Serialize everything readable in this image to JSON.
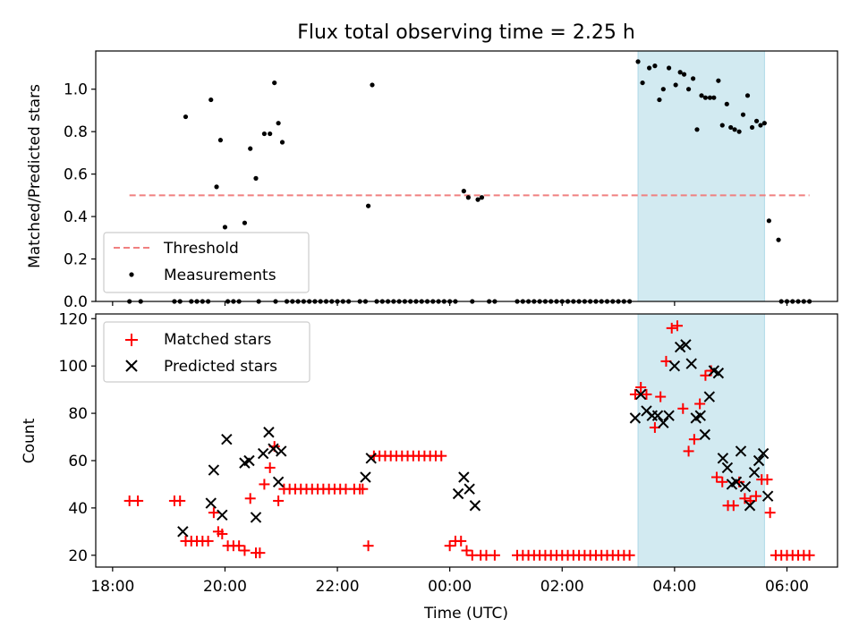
{
  "chart_data": [
    {
      "type": "scatter",
      "title": "Flux total observing time = 2.25 h",
      "xlabel": "",
      "ylabel": "Matched/Predicted stars",
      "xlim": [
        17.7,
        30.9
      ],
      "ylim": [
        0,
        1.18
      ],
      "yticks": [
        0.0,
        0.2,
        0.4,
        0.6,
        0.8,
        1.0
      ],
      "ytick_labels": [
        "0.0",
        "0.2",
        "0.4",
        "0.6",
        "0.8",
        "1.0"
      ],
      "shaded_span_x": [
        27.35,
        29.6
      ],
      "shaded_color": "#add8e6",
      "threshold": {
        "name": "Threshold",
        "y": 0.5,
        "x_range": [
          18.3,
          30.4
        ],
        "color": "#f08080"
      },
      "legend_position": "lower left",
      "series": [
        {
          "name": "Measurements",
          "color": "#000000",
          "x": [
            19.3,
            19.75,
            19.85,
            19.92,
            20.0,
            20.35,
            20.45,
            20.55,
            20.7,
            20.8,
            20.88,
            20.95,
            21.02,
            22.55,
            22.62,
            24.25,
            24.33,
            24.5,
            24.57,
            27.35,
            27.43,
            27.55,
            27.65,
            27.73,
            27.8,
            27.9,
            28.02,
            28.1,
            28.17,
            28.25,
            28.33,
            28.4,
            28.48,
            28.55,
            28.63,
            28.7,
            28.78,
            28.85,
            28.93,
            29.0,
            29.07,
            29.15,
            29.22,
            29.3,
            29.38,
            29.46,
            29.53,
            29.6,
            29.68,
            29.85,
            18.3,
            18.5,
            19.1,
            19.2,
            19.4,
            19.5,
            19.6,
            19.7,
            20.05,
            20.15,
            20.25,
            20.6,
            20.9,
            21.1,
            21.2,
            21.3,
            21.4,
            21.5,
            21.6,
            21.7,
            21.8,
            21.9,
            22.0,
            22.1,
            22.2,
            22.4,
            22.5,
            22.7,
            22.8,
            22.9,
            23.0,
            23.1,
            23.2,
            23.3,
            23.4,
            23.5,
            23.6,
            23.7,
            23.8,
            23.9,
            24.0,
            24.1,
            24.4,
            24.7,
            24.8,
            25.2,
            25.3,
            25.4,
            25.5,
            25.6,
            25.7,
            25.8,
            25.9,
            26.0,
            26.1,
            26.2,
            26.3,
            26.4,
            26.5,
            26.6,
            26.7,
            26.8,
            26.9,
            27.0,
            27.1,
            27.2,
            29.9,
            30.0,
            30.1,
            30.2,
            30.3,
            30.4
          ],
          "y": [
            0.87,
            0.95,
            0.54,
            0.76,
            0.35,
            0.37,
            0.72,
            0.58,
            0.79,
            0.79,
            1.03,
            0.84,
            0.75,
            0.45,
            1.02,
            0.52,
            0.49,
            0.48,
            0.49,
            1.13,
            1.03,
            1.1,
            1.11,
            0.95,
            1.0,
            1.1,
            1.02,
            1.08,
            1.07,
            1.0,
            1.05,
            0.81,
            0.97,
            0.96,
            0.96,
            0.96,
            1.04,
            0.83,
            0.93,
            0.82,
            0.81,
            0.8,
            0.88,
            0.97,
            0.82,
            0.85,
            0.83,
            0.84,
            0.38,
            0.29,
            0,
            0,
            0,
            0,
            0,
            0,
            0,
            0,
            0,
            0,
            0,
            0,
            0,
            0,
            0,
            0,
            0,
            0,
            0,
            0,
            0,
            0,
            0,
            0,
            0,
            0,
            0,
            0,
            0,
            0,
            0,
            0,
            0,
            0,
            0,
            0,
            0,
            0,
            0,
            0,
            0,
            0,
            0,
            0,
            0,
            0,
            0,
            0,
            0,
            0,
            0,
            0,
            0,
            0,
            0,
            0,
            0,
            0,
            0,
            0,
            0,
            0,
            0,
            0,
            0,
            0,
            0,
            0,
            0,
            0,
            0,
            0
          ]
        }
      ]
    },
    {
      "type": "scatter",
      "title": "",
      "xlabel": "Time (UTC)",
      "ylabel": "Count",
      "xlim": [
        17.7,
        30.9
      ],
      "ylim": [
        15,
        122
      ],
      "yticks": [
        20,
        40,
        60,
        80,
        100,
        120
      ],
      "ytick_labels": [
        "20",
        "40",
        "60",
        "80",
        "100",
        "120"
      ],
      "xticks": [
        18,
        20,
        22,
        24,
        26,
        28,
        30
      ],
      "xtick_labels": [
        "18:00",
        "20:00",
        "22:00",
        "00:00",
        "02:00",
        "04:00",
        "06:00"
      ],
      "shaded_span_x": [
        27.35,
        29.6
      ],
      "shaded_color": "#add8e6",
      "legend_position": "upper left",
      "series": [
        {
          "name": "Matched stars",
          "marker": "plus",
          "color": "#ff0000",
          "x": [
            18.3,
            18.45,
            19.1,
            19.2,
            19.3,
            19.4,
            19.5,
            19.6,
            19.7,
            19.8,
            19.88,
            19.95,
            20.05,
            20.15,
            20.25,
            20.35,
            20.45,
            20.55,
            20.62,
            20.7,
            20.8,
            20.88,
            20.95,
            21.05,
            21.15,
            21.25,
            21.35,
            21.45,
            21.55,
            21.65,
            21.75,
            21.85,
            21.95,
            22.05,
            22.15,
            22.3,
            22.4,
            22.45,
            22.55,
            22.65,
            22.75,
            22.85,
            22.95,
            23.05,
            23.15,
            23.25,
            23.35,
            23.45,
            23.55,
            23.65,
            23.75,
            23.85,
            24.0,
            24.1,
            24.2,
            24.3,
            24.4,
            24.55,
            24.65,
            24.8,
            25.2,
            25.3,
            25.4,
            25.5,
            25.6,
            25.7,
            25.8,
            25.9,
            26.0,
            26.1,
            26.2,
            26.3,
            26.4,
            26.5,
            26.6,
            26.7,
            26.8,
            26.9,
            27.0,
            27.1,
            27.2,
            27.3,
            27.4,
            27.5,
            27.65,
            27.75,
            27.85,
            27.95,
            28.05,
            28.15,
            28.25,
            28.35,
            28.45,
            28.55,
            28.65,
            28.75,
            28.85,
            28.95,
            29.05,
            29.15,
            29.25,
            29.35,
            29.45,
            29.55,
            29.65,
            29.7,
            29.8,
            29.9,
            30.0,
            30.1,
            30.2,
            30.3,
            30.4
          ],
          "y": [
            43,
            43,
            43,
            43,
            26,
            26,
            26,
            26,
            26,
            38,
            30,
            29,
            24,
            24,
            24,
            22,
            44,
            21,
            21,
            50,
            57,
            66,
            43,
            48,
            48,
            48,
            48,
            48,
            48,
            48,
            48,
            48,
            48,
            48,
            48,
            48,
            48,
            48,
            24,
            62,
            62,
            62,
            62,
            62,
            62,
            62,
            62,
            62,
            62,
            62,
            62,
            62,
            24,
            26,
            26,
            22,
            20,
            20,
            20,
            20,
            20,
            20,
            20,
            20,
            20,
            20,
            20,
            20,
            20,
            20,
            20,
            20,
            20,
            20,
            20,
            20,
            20,
            20,
            20,
            20,
            20,
            88,
            91,
            88,
            74,
            87,
            102,
            116,
            117,
            82,
            64,
            69,
            84,
            96,
            98,
            53,
            51,
            41,
            41,
            51,
            44,
            43,
            45,
            52,
            52,
            38,
            20,
            20,
            20,
            20,
            20,
            20,
            20
          ]
        },
        {
          "name": "Predicted stars",
          "marker": "x",
          "color": "#000000",
          "x": [
            19.25,
            19.75,
            19.8,
            19.95,
            20.03,
            20.35,
            20.43,
            20.55,
            20.68,
            20.78,
            20.86,
            20.95,
            21.0,
            22.5,
            22.6,
            24.15,
            24.25,
            24.35,
            24.45,
            27.3,
            27.4,
            27.5,
            27.6,
            27.7,
            27.8,
            27.9,
            28.0,
            28.1,
            28.2,
            28.3,
            28.38,
            28.46,
            28.54,
            28.62,
            28.7,
            28.78,
            28.86,
            28.94,
            29.02,
            29.1,
            29.18,
            29.26,
            29.34,
            29.42,
            29.5,
            29.58,
            29.66
          ],
          "y": [
            30,
            42,
            56,
            37,
            69,
            59,
            60,
            36,
            63,
            72,
            65,
            51,
            64,
            53,
            61,
            46,
            53,
            48,
            41,
            78,
            88,
            81,
            79,
            79,
            76,
            79,
            100,
            108,
            109,
            101,
            78,
            79,
            71,
            87,
            98,
            97,
            61,
            57,
            50,
            51,
            64,
            49,
            41,
            55,
            60,
            63,
            45
          ]
        }
      ]
    }
  ]
}
